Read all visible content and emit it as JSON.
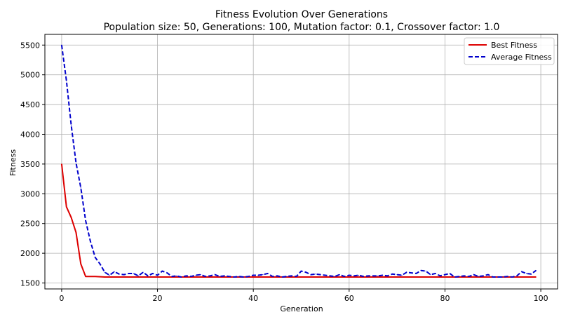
{
  "chart_data": {
    "type": "line",
    "title": "Fitness Evolution Over Generations",
    "subtitle": "Population size: 50, Generations: 100, Mutation factor: 0.1, Crossover factor: 1.0",
    "xlabel": "Generation",
    "ylabel": "Fitness",
    "xlim": [
      -3.5,
      103.5
    ],
    "ylim": [
      1400,
      5680
    ],
    "xticks": [
      0,
      20,
      40,
      60,
      80,
      100
    ],
    "yticks": [
      1500,
      2000,
      2500,
      3000,
      3500,
      4000,
      4500,
      5000,
      5500
    ],
    "grid": true,
    "legend_position": "top-right",
    "x": [
      0,
      1,
      2,
      3,
      4,
      5,
      6,
      7,
      8,
      9,
      10,
      11,
      12,
      13,
      14,
      15,
      16,
      17,
      18,
      19,
      20,
      21,
      22,
      23,
      24,
      25,
      26,
      27,
      28,
      29,
      30,
      31,
      32,
      33,
      34,
      35,
      36,
      37,
      38,
      39,
      40,
      41,
      42,
      43,
      44,
      45,
      46,
      47,
      48,
      49,
      50,
      51,
      52,
      53,
      54,
      55,
      56,
      57,
      58,
      59,
      60,
      61,
      62,
      63,
      64,
      65,
      66,
      67,
      68,
      69,
      70,
      71,
      72,
      73,
      74,
      75,
      76,
      77,
      78,
      79,
      80,
      81,
      82,
      83,
      84,
      85,
      86,
      87,
      88,
      89,
      90,
      91,
      92,
      93,
      94,
      95,
      96,
      97,
      98,
      99
    ],
    "series": [
      {
        "name": "Best Fitness",
        "color": "#dd0000",
        "style": "solid",
        "values": [
          3500,
          2780,
          2600,
          2350,
          1820,
          1610,
          1610,
          1610,
          1605,
          1600,
          1600,
          1600,
          1600,
          1600,
          1600,
          1600,
          1600,
          1600,
          1600,
          1600,
          1600,
          1600,
          1600,
          1600,
          1600,
          1600,
          1600,
          1600,
          1600,
          1600,
          1600,
          1600,
          1600,
          1600,
          1600,
          1600,
          1600,
          1600,
          1600,
          1600,
          1600,
          1600,
          1600,
          1600,
          1600,
          1600,
          1600,
          1600,
          1600,
          1600,
          1600,
          1600,
          1600,
          1600,
          1600,
          1600,
          1600,
          1600,
          1600,
          1600,
          1600,
          1600,
          1600,
          1600,
          1600,
          1600,
          1600,
          1600,
          1600,
          1600,
          1600,
          1600,
          1600,
          1600,
          1600,
          1600,
          1600,
          1600,
          1600,
          1600,
          1600,
          1600,
          1600,
          1600,
          1600,
          1600,
          1600,
          1600,
          1600,
          1600,
          1600,
          1600,
          1600,
          1600,
          1600,
          1600,
          1600,
          1600,
          1600,
          1600
        ]
      },
      {
        "name": "Average Fitness",
        "color": "#0000cc",
        "style": "dashed",
        "values": [
          5500,
          4900,
          4150,
          3520,
          3100,
          2550,
          2200,
          1930,
          1820,
          1680,
          1630,
          1690,
          1650,
          1640,
          1660,
          1660,
          1620,
          1680,
          1620,
          1660,
          1630,
          1700,
          1670,
          1610,
          1620,
          1600,
          1620,
          1610,
          1630,
          1640,
          1610,
          1620,
          1640,
          1610,
          1620,
          1610,
          1600,
          1610,
          1600,
          1610,
          1630,
          1630,
          1640,
          1660,
          1610,
          1620,
          1600,
          1610,
          1620,
          1610,
          1700,
          1680,
          1640,
          1650,
          1640,
          1630,
          1620,
          1610,
          1640,
          1610,
          1630,
          1620,
          1630,
          1610,
          1620,
          1620,
          1620,
          1630,
          1620,
          1650,
          1640,
          1630,
          1680,
          1670,
          1660,
          1710,
          1700,
          1640,
          1660,
          1620,
          1640,
          1660,
          1600,
          1610,
          1620,
          1610,
          1640,
          1610,
          1620,
          1640,
          1600,
          1600,
          1600,
          1610,
          1600,
          1620,
          1690,
          1660,
          1650,
          1710
        ]
      }
    ]
  }
}
